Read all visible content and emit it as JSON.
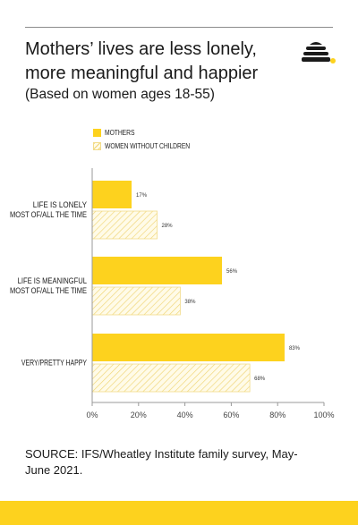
{
  "header": {
    "title": "Mothers’ lives are less lonely, more meaningful and happier",
    "subtitle": "(Based on women ages 18-55)"
  },
  "legend": {
    "items": [
      {
        "label": "MOTHERS",
        "style": "solid"
      },
      {
        "label": "WOMEN WITHOUT CHILDREN",
        "style": "hatched"
      }
    ]
  },
  "footer": {
    "source": "SOURCE: IFS/Wheatley Institute family survey, May-June 2021."
  },
  "colors": {
    "accent": "#fdd21e",
    "hatch_line": "#f0d575",
    "hatch_bg": "#fffbe8",
    "axis": "#999999",
    "text": "#1a1a1a"
  },
  "chart_data": {
    "type": "bar",
    "orientation": "horizontal",
    "categories": [
      [
        "LIFE IS LONELY",
        "MOST OF/ALL THE TIME"
      ],
      [
        "LIFE IS MEANINGFUL",
        "MOST OF/ALL THE TIME"
      ],
      [
        "VERY/PRETTY HAPPY"
      ]
    ],
    "series": [
      {
        "name": "MOTHERS",
        "values": [
          17,
          56,
          83
        ],
        "labels": [
          "17%",
          "56%",
          "83%"
        ]
      },
      {
        "name": "WOMEN WITHOUT CHILDREN",
        "values": [
          28,
          38,
          68
        ],
        "labels": [
          "28%",
          "38%",
          "68%"
        ]
      }
    ],
    "xlim": [
      0,
      100
    ],
    "xticks": [
      0,
      20,
      40,
      60,
      80,
      100
    ],
    "xtick_labels": [
      "0%",
      "20%",
      "40%",
      "60%",
      "80%",
      "100%"
    ],
    "grid": false,
    "legend_position": "top-left"
  }
}
